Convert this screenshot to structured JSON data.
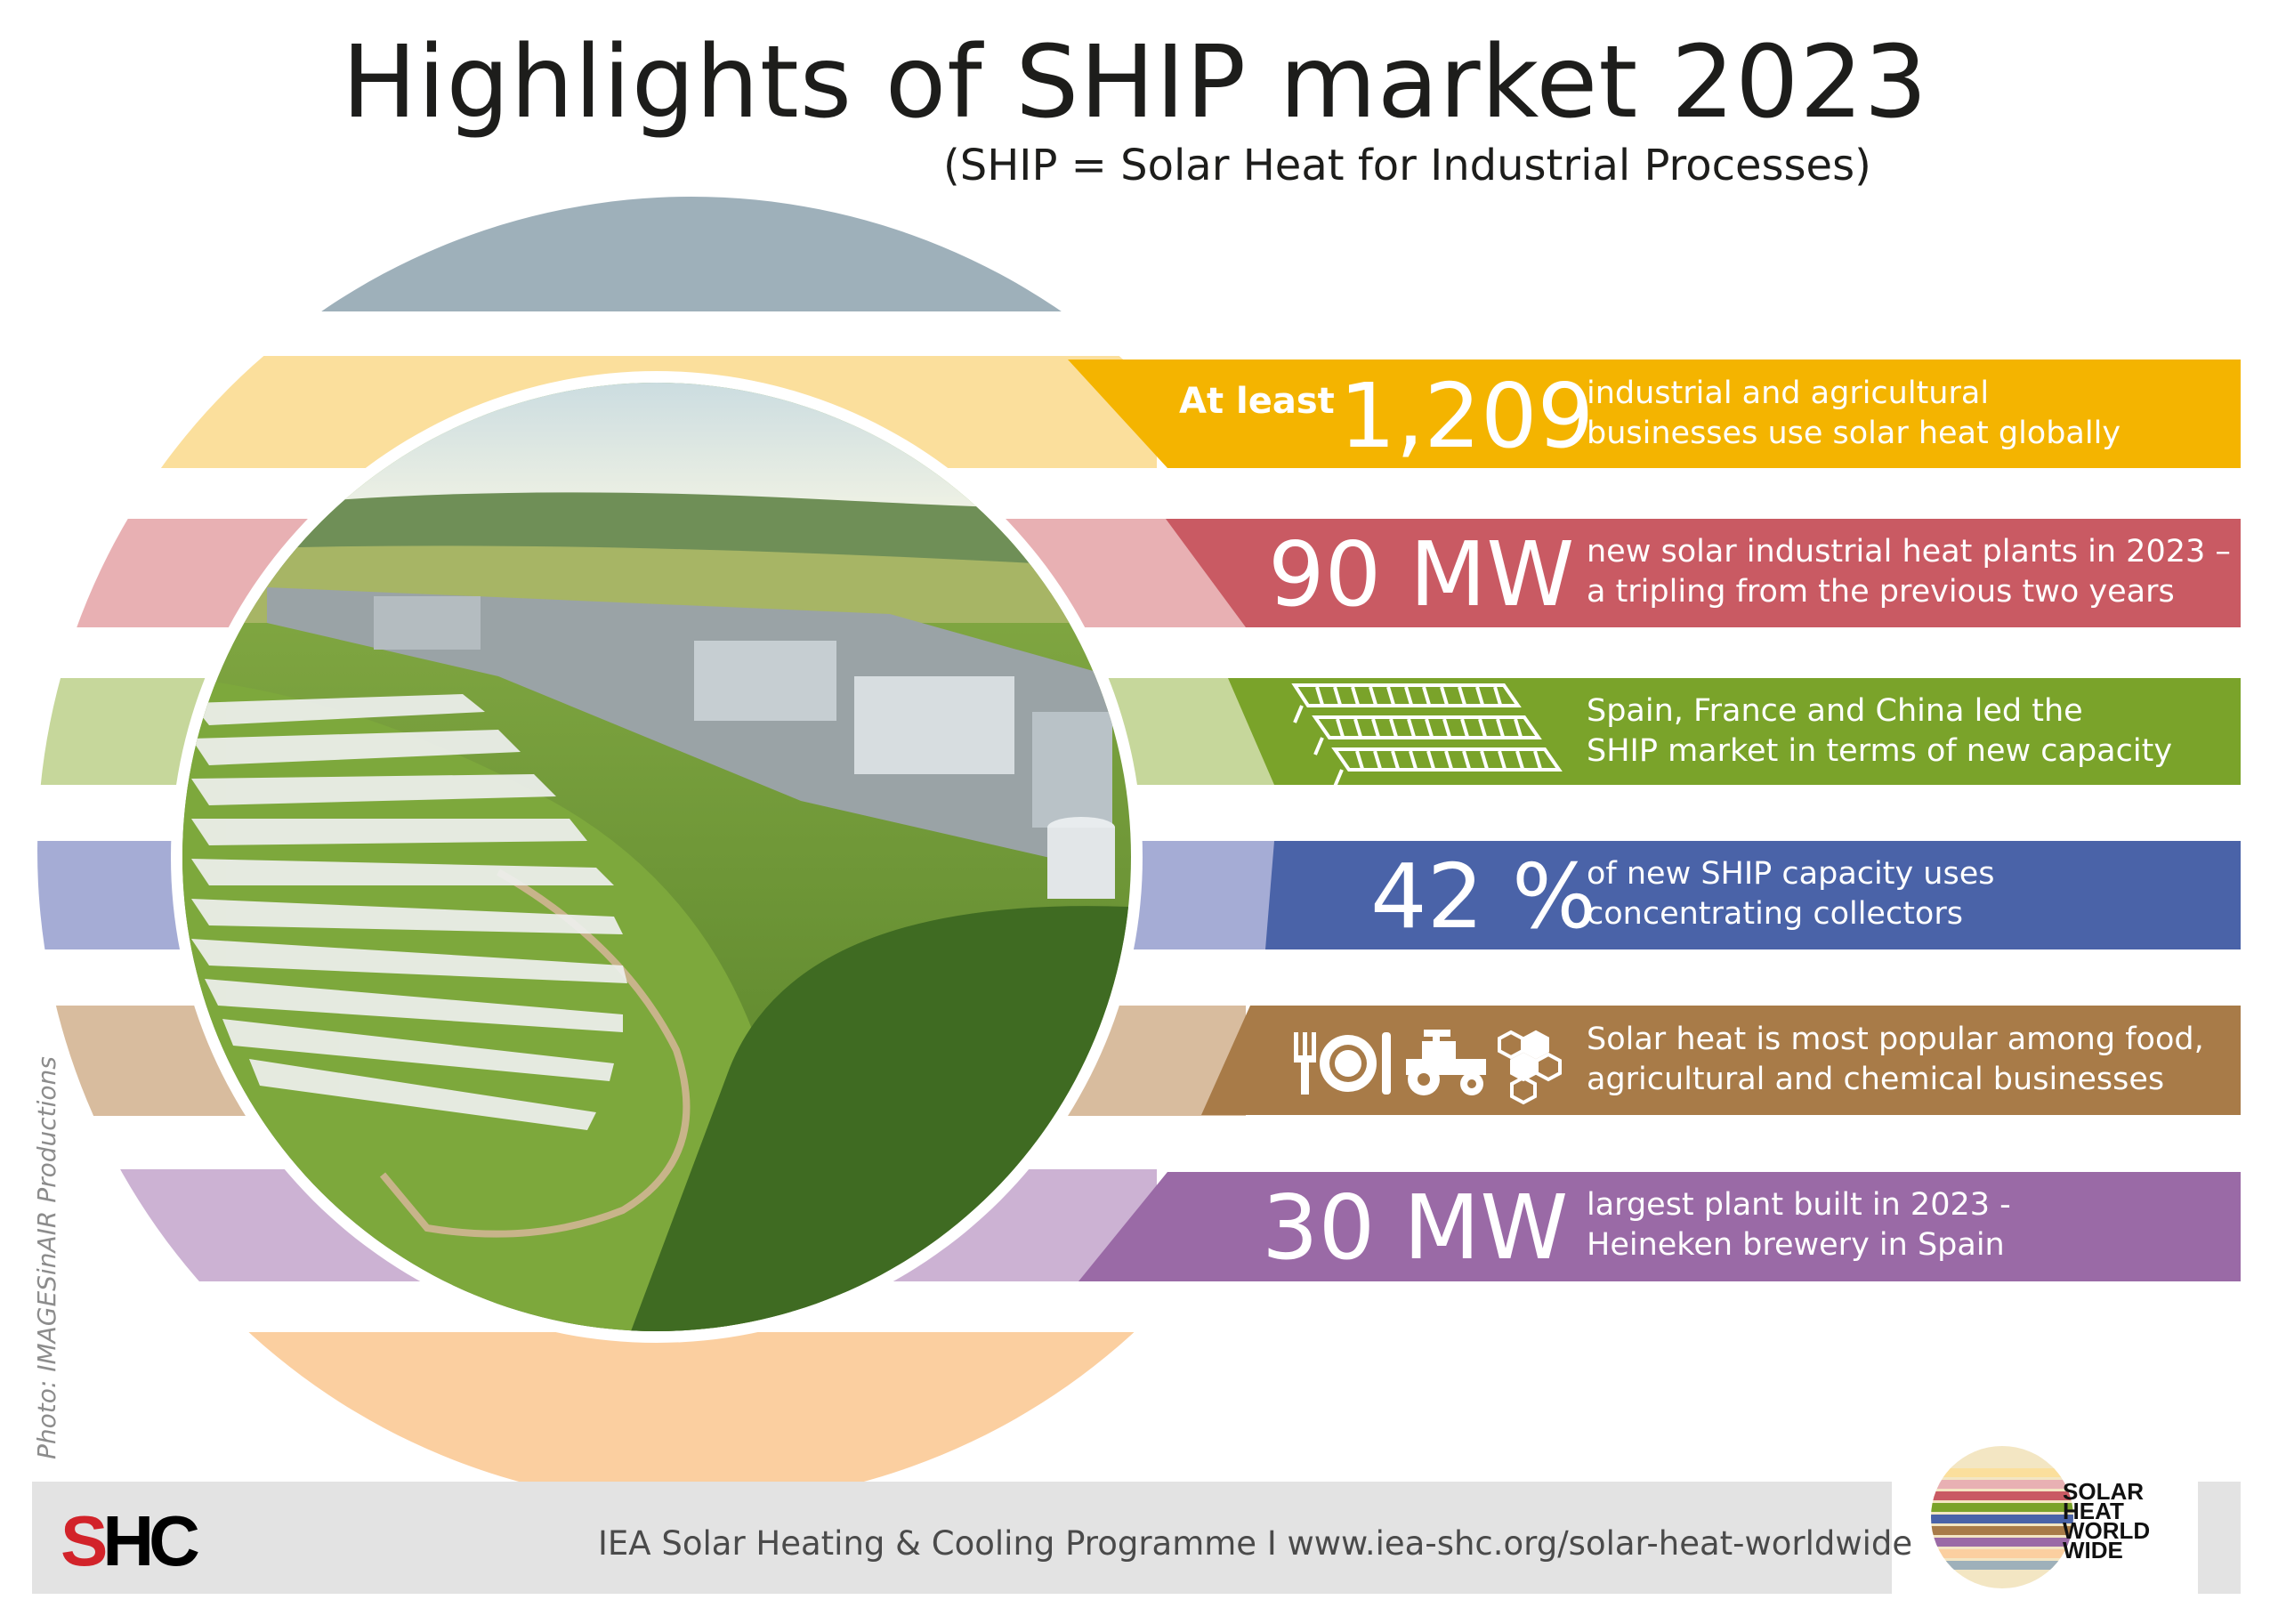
{
  "header": {
    "title": "Highlights of SHIP market 2023",
    "subtitle": "(SHIP = Solar Heat for Industrial Processes)"
  },
  "highlights": [
    {
      "lead": "At least",
      "figure": "1,209",
      "line1": "industrial and agricultural",
      "line2": "businesses use solar heat globally",
      "color": "#f4b400",
      "light": "#fbdf9c"
    },
    {
      "figure": "90 MW",
      "line1": "new solar industrial heat plants in 2023 –",
      "line2": "a tripling from the previous two years",
      "color": "#c95a63",
      "light": "#e8b0b3"
    },
    {
      "icon": "solar-collectors-icon",
      "line1": "Spain, France and China led the",
      "line2": "SHIP market in terms of new capacity",
      "color": "#7aa32a",
      "light": "#c6d79b"
    },
    {
      "figure": "42 %",
      "line1": "of new SHIP capacity uses",
      "line2": "concentrating collectors",
      "color": "#4a63a8",
      "light": "#a5acd5"
    },
    {
      "icons": [
        "cutlery-plate-icon",
        "tractor-icon",
        "hexagons-icon"
      ],
      "line1": "Solar heat is most popular among food,",
      "line2": "agricultural and chemical businesses",
      "color": "#a87b48",
      "light": "#d8bc9e"
    },
    {
      "figure": "30 MW",
      "line1": "largest plant built in 2023 -",
      "line2": "Heineken brewery in Spain",
      "color": "#9a6aa6",
      "light": "#ccb2d3"
    }
  ],
  "decor": {
    "top_cap_color": "#9eb0ba",
    "bottom_cap_color": "#fbcfa0"
  },
  "photo_credit": "Photo: IMAGESinAIR Productions",
  "footer": {
    "shc_logo": {
      "s": "S",
      "hc": "HC"
    },
    "text": "IEA Solar Heating & Cooling Programme I www.iea-shc.org/solar-heat-worldwide",
    "logo_words": [
      "SOLAR",
      "HEAT",
      "WORLD",
      "WIDE"
    ]
  }
}
